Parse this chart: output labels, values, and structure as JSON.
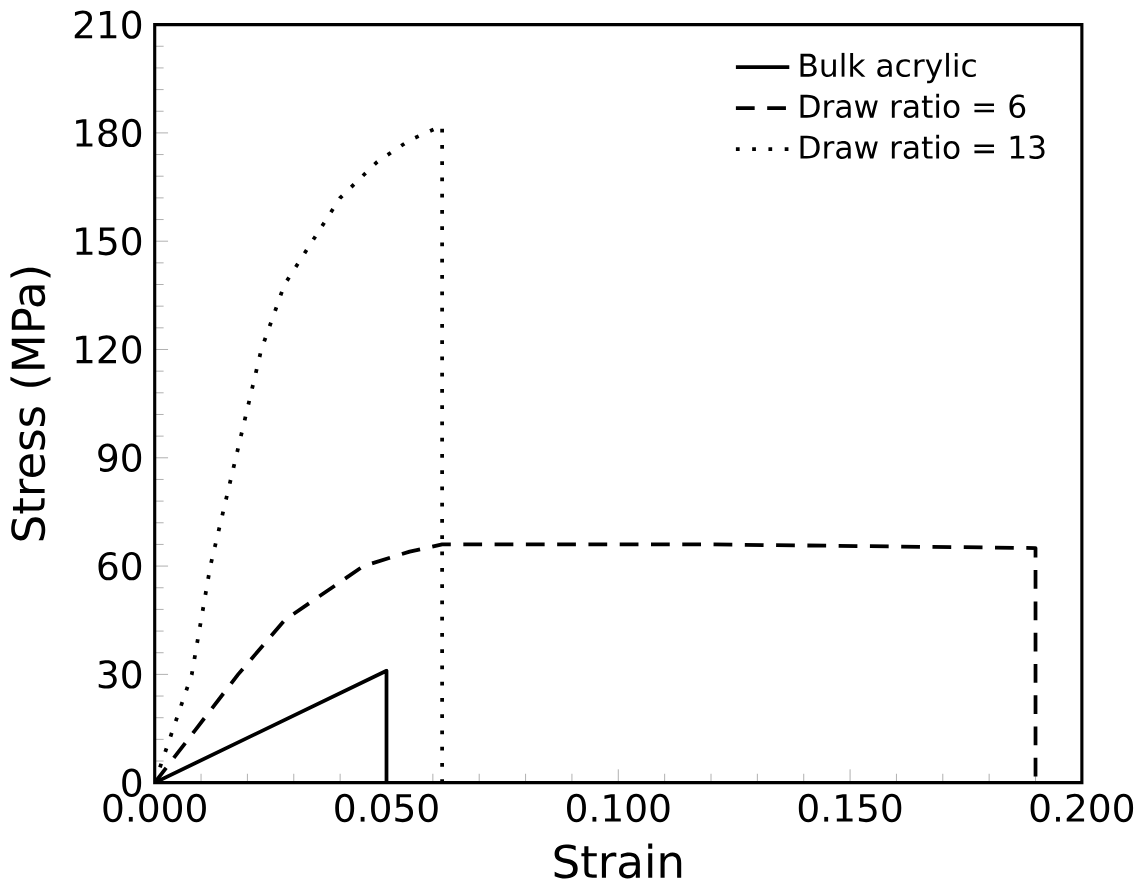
{
  "chart_data": {
    "type": "line",
    "xlabel": "Strain",
    "ylabel": "Stress (MPa)",
    "xlim": [
      0,
      0.2
    ],
    "ylim": [
      0,
      210
    ],
    "xticks": [
      {
        "value": 0,
        "label": "0.000"
      },
      {
        "value": 0.05,
        "label": "0.050"
      },
      {
        "value": 0.1,
        "label": "0.100"
      },
      {
        "value": 0.15,
        "label": "0.150"
      },
      {
        "value": 0.2,
        "label": "0.200"
      }
    ],
    "yticks": [
      0,
      30,
      60,
      90,
      120,
      150,
      180,
      210
    ],
    "legend": "top right",
    "grid": false,
    "marker": "none",
    "series": [
      {
        "name": "Bulk acrylic",
        "color": "#000000",
        "line_style": "solid",
        "x": [
          0,
          0.05,
          0.05
        ],
        "values": [
          0,
          31,
          0
        ]
      },
      {
        "name": "Draw ratio = 6",
        "color": "#000000",
        "line_style": "dashed",
        "x": [
          0,
          0.009,
          0.018,
          0.028,
          0.045,
          0.055,
          0.062,
          0.12,
          0.19,
          0.19
        ],
        "values": [
          0,
          15,
          30,
          45,
          60,
          64,
          66,
          66,
          65,
          0
        ]
      },
      {
        "name": "Draw ratio = 13",
        "color": "#000000",
        "line_style": "dotted",
        "x": [
          0,
          0.004,
          0.008,
          0.012,
          0.0175,
          0.023,
          0.028,
          0.034,
          0.04,
          0.048,
          0.055,
          0.062,
          0.062
        ],
        "values": [
          0,
          15,
          30,
          60,
          90,
          120,
          138,
          150,
          162,
          172,
          178,
          182,
          0
        ]
      }
    ]
  }
}
